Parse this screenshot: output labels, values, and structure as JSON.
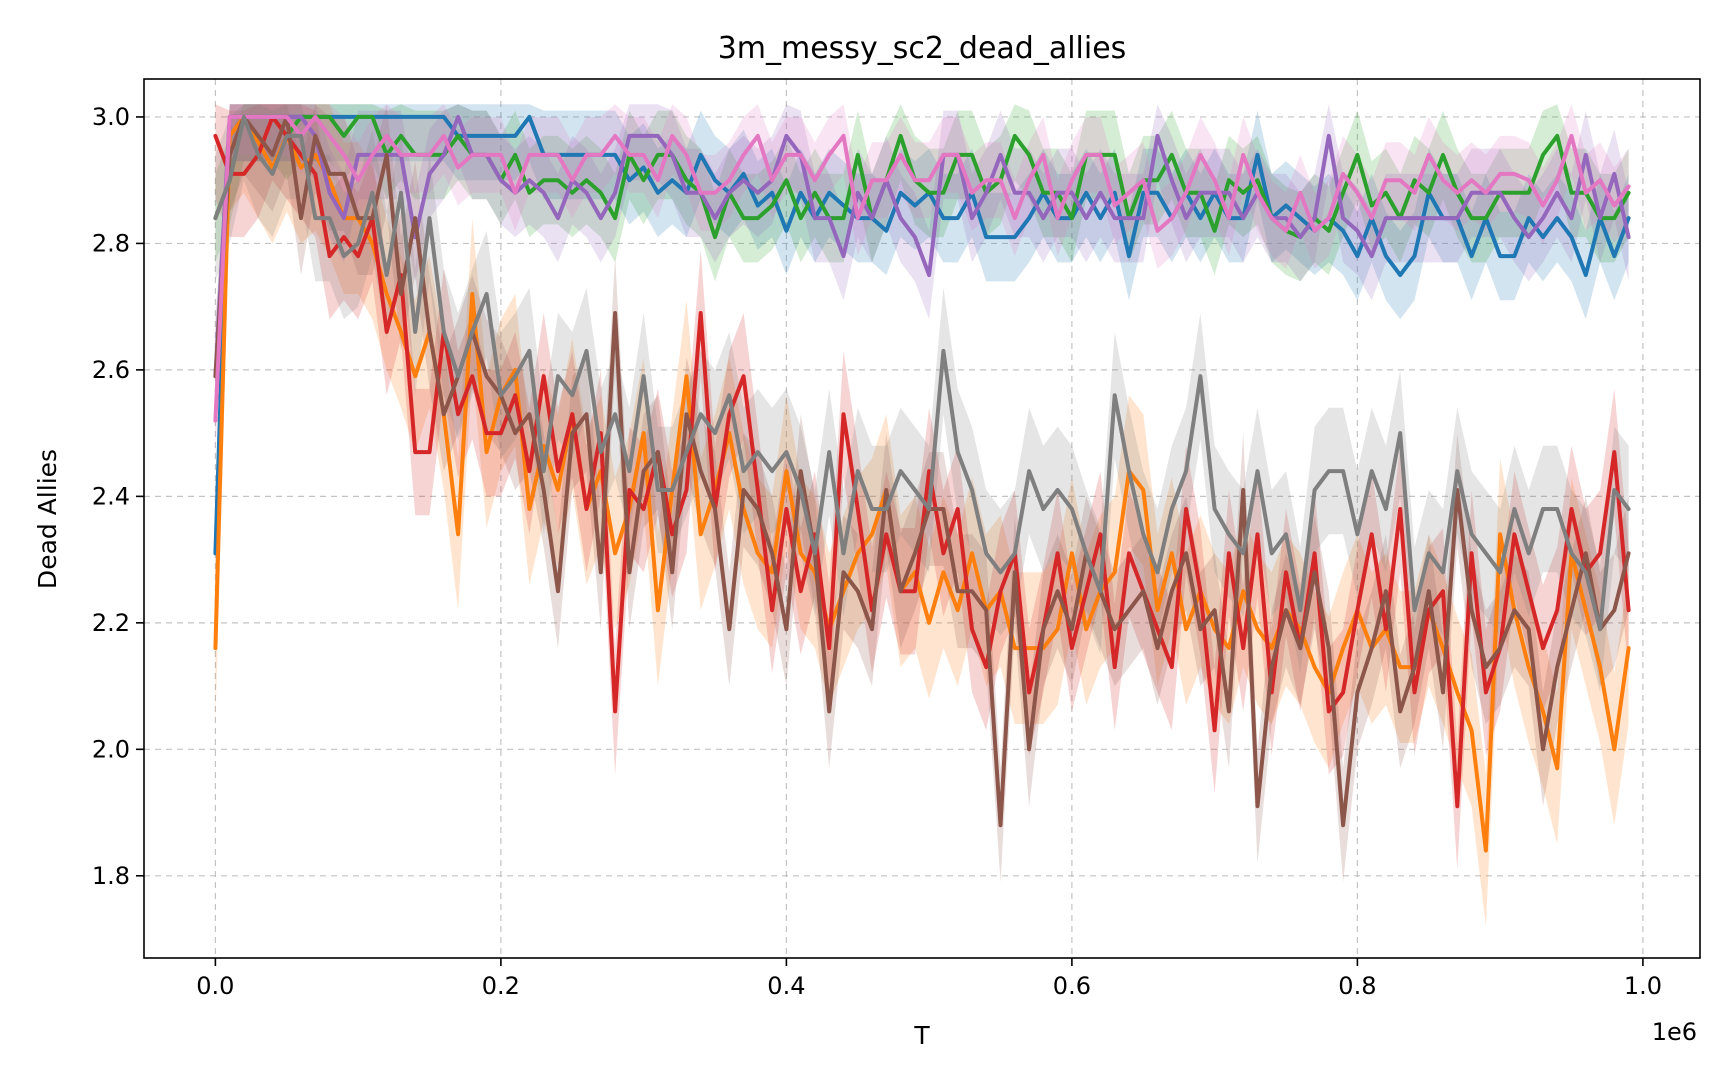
{
  "chart_data": {
    "type": "line",
    "title": "3m_messy_sc2_dead_allies",
    "xlabel": "T",
    "ylabel": "Dead Allies",
    "x_offset_label": "1e6",
    "xlim": [
      -0.05,
      1.04
    ],
    "ylim": [
      1.67,
      3.06
    ],
    "xticks": [
      0.0,
      0.2,
      0.4,
      0.6,
      0.8,
      1.0
    ],
    "xtick_labels": [
      "0.0",
      "0.2",
      "0.4",
      "0.6",
      "0.8",
      "1.0"
    ],
    "yticks": [
      1.8,
      2.0,
      2.2,
      2.4,
      2.6,
      2.8,
      3.0
    ],
    "ytick_labels": [
      "1.8",
      "2.0",
      "2.2",
      "2.4",
      "2.6",
      "2.8",
      "3.0"
    ],
    "grid": true,
    "x": [
      0.0,
      0.01,
      0.02,
      0.03,
      0.04,
      0.05,
      0.06,
      0.07,
      0.08,
      0.09,
      0.1,
      0.11,
      0.12,
      0.13,
      0.14,
      0.15,
      0.16,
      0.17,
      0.18,
      0.19,
      0.2,
      0.21,
      0.22,
      0.23,
      0.24,
      0.25,
      0.26,
      0.27,
      0.28,
      0.29,
      0.3,
      0.31,
      0.32,
      0.33,
      0.34,
      0.35,
      0.36,
      0.37,
      0.38,
      0.39,
      0.4,
      0.41,
      0.42,
      0.43,
      0.44,
      0.45,
      0.46,
      0.47,
      0.48,
      0.49,
      0.5,
      0.51,
      0.52,
      0.53,
      0.54,
      0.55,
      0.56,
      0.57,
      0.58,
      0.59,
      0.6,
      0.61,
      0.62,
      0.63,
      0.64,
      0.65,
      0.66,
      0.67,
      0.68,
      0.69,
      0.7,
      0.71,
      0.72,
      0.73,
      0.74,
      0.75,
      0.76,
      0.77,
      0.78,
      0.79,
      0.8,
      0.81,
      0.82,
      0.83,
      0.84,
      0.85,
      0.86,
      0.87,
      0.88,
      0.89,
      0.9,
      0.91,
      0.92,
      0.93,
      0.94,
      0.95,
      0.96,
      0.97,
      0.98,
      0.99
    ],
    "series": [
      {
        "color": "#1f77b4",
        "band": 0.07,
        "values": [
          2.31,
          3.0,
          3.0,
          3.0,
          3.0,
          3.0,
          3.0,
          3.0,
          3.0,
          3.0,
          3.0,
          3.0,
          3.0,
          3.0,
          3.0,
          3.0,
          3.0,
          2.97,
          2.97,
          2.97,
          2.97,
          2.97,
          3.0,
          2.94,
          2.94,
          2.94,
          2.94,
          2.94,
          2.94,
          2.9,
          2.92,
          2.88,
          2.9,
          2.88,
          2.94,
          2.9,
          2.88,
          2.91,
          2.86,
          2.88,
          2.82,
          2.88,
          2.84,
          2.88,
          2.86,
          2.84,
          2.84,
          2.82,
          2.88,
          2.86,
          2.88,
          2.84,
          2.84,
          2.88,
          2.81,
          2.81,
          2.81,
          2.84,
          2.88,
          2.84,
          2.84,
          2.88,
          2.84,
          2.88,
          2.78,
          2.88,
          2.88,
          2.84,
          2.88,
          2.84,
          2.88,
          2.84,
          2.84,
          2.94,
          2.84,
          2.86,
          2.84,
          2.82,
          2.84,
          2.82,
          2.78,
          2.84,
          2.78,
          2.75,
          2.78,
          2.88,
          2.84,
          2.84,
          2.78,
          2.84,
          2.78,
          2.78,
          2.84,
          2.81,
          2.84,
          2.81,
          2.75,
          2.84,
          2.78,
          2.84
        ]
      },
      {
        "color": "#ff7f0e",
        "band": 0.12,
        "values": [
          2.16,
          2.97,
          3.0,
          2.96,
          2.92,
          2.97,
          2.92,
          2.94,
          2.9,
          2.84,
          2.84,
          2.8,
          2.72,
          2.66,
          2.59,
          2.66,
          2.53,
          2.34,
          2.72,
          2.47,
          2.56,
          2.6,
          2.38,
          2.48,
          2.41,
          2.53,
          2.38,
          2.44,
          2.31,
          2.38,
          2.5,
          2.22,
          2.41,
          2.59,
          2.34,
          2.41,
          2.5,
          2.38,
          2.31,
          2.28,
          2.44,
          2.31,
          2.28,
          2.19,
          2.25,
          2.31,
          2.34,
          2.41,
          2.25,
          2.28,
          2.2,
          2.28,
          2.22,
          2.31,
          2.22,
          2.25,
          2.16,
          2.16,
          2.16,
          2.19,
          2.31,
          2.19,
          2.25,
          2.28,
          2.44,
          2.41,
          2.22,
          2.31,
          2.19,
          2.25,
          2.19,
          2.16,
          2.25,
          2.19,
          2.16,
          2.22,
          2.19,
          2.13,
          2.09,
          2.16,
          2.22,
          2.16,
          2.19,
          2.13,
          2.13,
          2.22,
          2.16,
          2.09,
          2.03,
          1.84,
          2.34,
          2.22,
          2.13,
          2.06,
          1.97,
          2.31,
          2.22,
          2.13,
          2.0,
          2.16
        ]
      },
      {
        "color": "#2ca02c",
        "band": 0.07,
        "values": [
          2.84,
          2.9,
          3.0,
          3.0,
          3.0,
          2.97,
          3.0,
          3.0,
          3.0,
          2.97,
          3.0,
          3.0,
          2.94,
          2.97,
          2.94,
          2.94,
          2.94,
          2.97,
          2.94,
          2.94,
          2.9,
          2.94,
          2.88,
          2.9,
          2.9,
          2.88,
          2.9,
          2.88,
          2.84,
          2.94,
          2.9,
          2.94,
          2.94,
          2.9,
          2.88,
          2.81,
          2.88,
          2.84,
          2.84,
          2.86,
          2.9,
          2.84,
          2.88,
          2.84,
          2.84,
          2.94,
          2.84,
          2.9,
          2.97,
          2.9,
          2.88,
          2.88,
          2.94,
          2.94,
          2.88,
          2.9,
          2.97,
          2.94,
          2.88,
          2.88,
          2.84,
          2.94,
          2.94,
          2.94,
          2.84,
          2.9,
          2.9,
          2.94,
          2.88,
          2.88,
          2.82,
          2.9,
          2.88,
          2.9,
          2.84,
          2.82,
          2.81,
          2.84,
          2.82,
          2.88,
          2.94,
          2.86,
          2.88,
          2.84,
          2.9,
          2.88,
          2.94,
          2.88,
          2.84,
          2.84,
          2.88,
          2.88,
          2.88,
          2.94,
          2.97,
          2.88,
          2.88,
          2.84,
          2.84,
          2.88
        ]
      },
      {
        "color": "#d62728",
        "band": 0.1,
        "values": [
          2.97,
          2.91,
          2.91,
          2.94,
          3.0,
          2.97,
          2.94,
          2.91,
          2.78,
          2.81,
          2.78,
          2.84,
          2.66,
          2.75,
          2.47,
          2.47,
          2.66,
          2.53,
          2.59,
          2.5,
          2.5,
          2.56,
          2.44,
          2.59,
          2.44,
          2.53,
          2.38,
          2.5,
          2.06,
          2.41,
          2.38,
          2.47,
          2.34,
          2.41,
          2.69,
          2.38,
          2.53,
          2.59,
          2.41,
          2.22,
          2.38,
          2.25,
          2.34,
          2.16,
          2.53,
          2.38,
          2.22,
          2.34,
          2.25,
          2.25,
          2.44,
          2.31,
          2.38,
          2.19,
          2.13,
          2.25,
          2.31,
          2.09,
          2.19,
          2.31,
          2.16,
          2.25,
          2.34,
          2.13,
          2.31,
          2.25,
          2.19,
          2.13,
          2.38,
          2.25,
          2.03,
          2.31,
          2.16,
          2.34,
          2.09,
          2.28,
          2.16,
          2.31,
          2.06,
          2.09,
          2.22,
          2.34,
          2.19,
          2.38,
          2.09,
          2.22,
          2.25,
          1.91,
          2.31,
          2.09,
          2.16,
          2.34,
          2.25,
          2.16,
          2.22,
          2.38,
          2.28,
          2.31,
          2.47,
          2.22
        ]
      },
      {
        "color": "#9467bd",
        "band": 0.07,
        "values": [
          2.59,
          3.0,
          3.0,
          3.0,
          3.0,
          3.0,
          3.0,
          2.97,
          2.88,
          2.84,
          2.94,
          2.94,
          2.94,
          2.94,
          2.81,
          2.91,
          2.94,
          3.0,
          2.94,
          2.94,
          2.9,
          2.88,
          2.9,
          2.88,
          2.84,
          2.9,
          2.88,
          2.84,
          2.88,
          2.97,
          2.97,
          2.97,
          2.94,
          2.88,
          2.88,
          2.84,
          2.88,
          2.9,
          2.88,
          2.9,
          2.97,
          2.94,
          2.84,
          2.84,
          2.78,
          2.88,
          2.84,
          2.9,
          2.84,
          2.81,
          2.75,
          2.94,
          2.94,
          2.84,
          2.88,
          2.94,
          2.88,
          2.88,
          2.84,
          2.88,
          2.88,
          2.84,
          2.88,
          2.84,
          2.84,
          2.84,
          2.97,
          2.9,
          2.84,
          2.88,
          2.88,
          2.88,
          2.84,
          2.88,
          2.84,
          2.84,
          2.81,
          2.84,
          2.97,
          2.84,
          2.82,
          2.78,
          2.84,
          2.84,
          2.84,
          2.84,
          2.84,
          2.84,
          2.88,
          2.88,
          2.88,
          2.84,
          2.81,
          2.84,
          2.88,
          2.84,
          2.94,
          2.84,
          2.91,
          2.81
        ]
      },
      {
        "color": "#8c564b",
        "band": 0.09,
        "values": [
          2.59,
          2.94,
          3.0,
          2.97,
          2.94,
          3.0,
          2.84,
          2.97,
          2.91,
          2.91,
          2.84,
          2.84,
          2.94,
          2.72,
          2.84,
          2.66,
          2.53,
          2.59,
          2.66,
          2.59,
          2.56,
          2.5,
          2.53,
          2.41,
          2.25,
          2.5,
          2.53,
          2.28,
          2.69,
          2.28,
          2.44,
          2.47,
          2.28,
          2.53,
          2.44,
          2.38,
          2.19,
          2.41,
          2.38,
          2.31,
          2.19,
          2.44,
          2.31,
          2.06,
          2.28,
          2.25,
          2.19,
          2.41,
          2.25,
          2.31,
          2.38,
          2.38,
          2.25,
          2.25,
          2.22,
          1.88,
          2.28,
          2.0,
          2.19,
          2.25,
          2.19,
          2.31,
          2.25,
          2.19,
          2.22,
          2.25,
          2.16,
          2.25,
          2.31,
          2.19,
          2.22,
          2.06,
          2.41,
          1.91,
          2.13,
          2.22,
          2.16,
          2.28,
          2.16,
          1.88,
          2.09,
          2.16,
          2.25,
          2.06,
          2.13,
          2.25,
          2.09,
          2.41,
          2.22,
          2.13,
          2.16,
          2.22,
          2.19,
          2.0,
          2.13,
          2.22,
          2.31,
          2.19,
          2.22,
          2.31
        ]
      },
      {
        "color": "#e377c2",
        "band": 0.06,
        "values": [
          2.52,
          3.0,
          3.0,
          3.0,
          3.0,
          3.0,
          2.97,
          3.0,
          2.97,
          2.94,
          2.9,
          2.94,
          2.97,
          2.94,
          2.94,
          2.94,
          2.97,
          2.92,
          2.94,
          2.94,
          2.94,
          2.88,
          2.94,
          2.94,
          2.94,
          2.9,
          2.94,
          2.94,
          2.97,
          2.94,
          2.94,
          2.9,
          2.97,
          2.94,
          2.88,
          2.88,
          2.9,
          2.94,
          2.97,
          2.9,
          2.94,
          2.94,
          2.9,
          2.94,
          2.97,
          2.84,
          2.9,
          2.9,
          2.94,
          2.9,
          2.9,
          2.94,
          2.94,
          2.88,
          2.9,
          2.9,
          2.84,
          2.9,
          2.94,
          2.84,
          2.9,
          2.94,
          2.94,
          2.86,
          2.88,
          2.9,
          2.82,
          2.84,
          2.88,
          2.94,
          2.9,
          2.84,
          2.94,
          2.88,
          2.84,
          2.82,
          2.88,
          2.82,
          2.84,
          2.91,
          2.88,
          2.84,
          2.9,
          2.9,
          2.88,
          2.94,
          2.9,
          2.88,
          2.9,
          2.88,
          2.91,
          2.91,
          2.9,
          2.86,
          2.9,
          2.97,
          2.88,
          2.9,
          2.86,
          2.89
        ]
      },
      {
        "color": "#7f7f7f",
        "band": 0.1,
        "values": [
          2.84,
          2.9,
          3.0,
          2.94,
          2.91,
          2.97,
          2.97,
          2.84,
          2.84,
          2.78,
          2.8,
          2.88,
          2.75,
          2.88,
          2.66,
          2.84,
          2.66,
          2.59,
          2.66,
          2.72,
          2.56,
          2.59,
          2.63,
          2.44,
          2.59,
          2.56,
          2.63,
          2.47,
          2.53,
          2.44,
          2.59,
          2.41,
          2.41,
          2.47,
          2.53,
          2.5,
          2.56,
          2.44,
          2.47,
          2.44,
          2.47,
          2.41,
          2.31,
          2.47,
          2.31,
          2.44,
          2.38,
          2.38,
          2.44,
          2.41,
          2.38,
          2.63,
          2.47,
          2.41,
          2.31,
          2.28,
          2.31,
          2.44,
          2.38,
          2.41,
          2.38,
          2.31,
          2.25,
          2.56,
          2.44,
          2.34,
          2.28,
          2.38,
          2.44,
          2.59,
          2.38,
          2.34,
          2.31,
          2.44,
          2.31,
          2.34,
          2.22,
          2.41,
          2.44,
          2.44,
          2.34,
          2.44,
          2.38,
          2.5,
          2.22,
          2.31,
          2.28,
          2.44,
          2.34,
          2.31,
          2.28,
          2.38,
          2.31,
          2.38,
          2.38,
          2.31,
          2.28,
          2.19,
          2.41,
          2.38
        ]
      }
    ]
  }
}
